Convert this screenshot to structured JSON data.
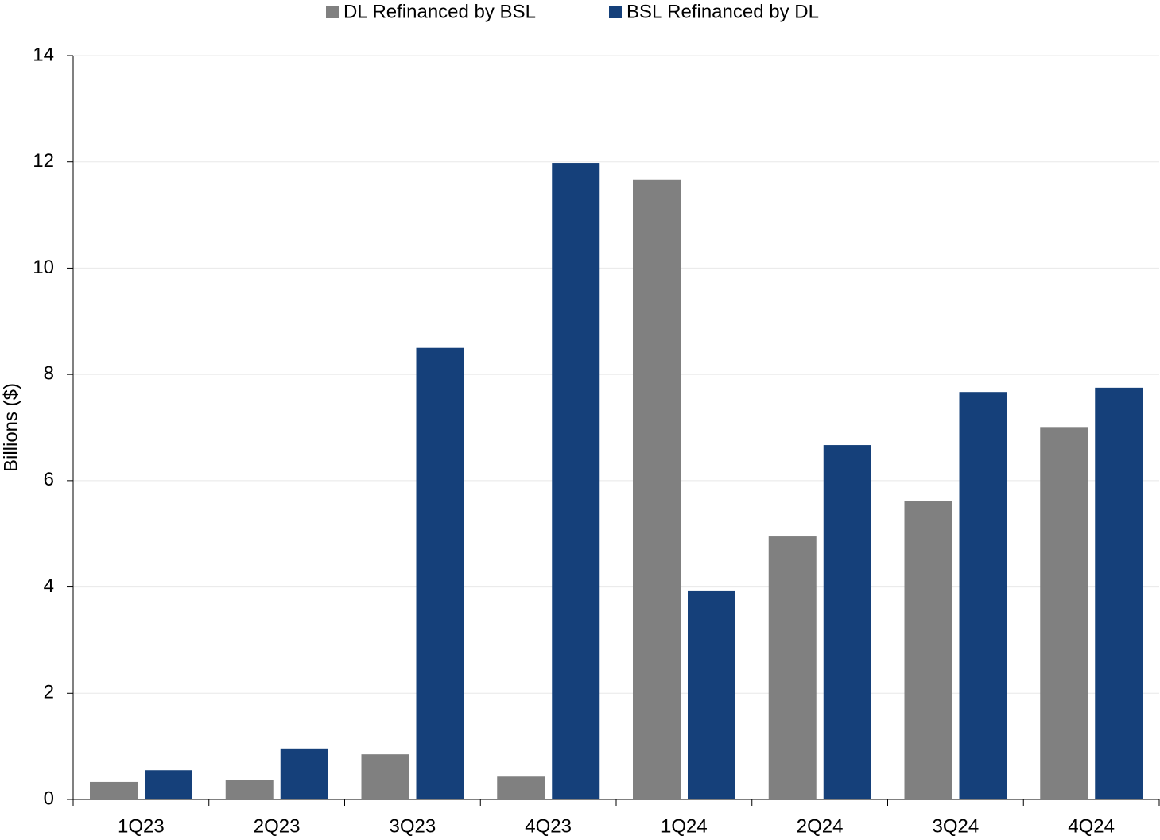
{
  "chart_data": {
    "type": "bar",
    "y_label": "Billions ($)",
    "categories": [
      "1Q23",
      "2Q23",
      "3Q23",
      "4Q23",
      "1Q24",
      "2Q24",
      "3Q24",
      "4Q24"
    ],
    "series": [
      {
        "name": "DL Refinanced by BSL",
        "color": "#808080",
        "values": [
          0.33,
          0.37,
          0.85,
          0.43,
          11.67,
          4.95,
          5.61,
          7.01
        ]
      },
      {
        "name": "BSL Refinanced by DL",
        "color": "#15407a",
        "values": [
          0.55,
          0.96,
          8.5,
          11.98,
          3.92,
          6.67,
          7.67,
          7.75
        ]
      }
    ],
    "ylim": [
      0,
      14
    ],
    "yticks": [
      0,
      2,
      4,
      6,
      8,
      10,
      12,
      14
    ],
    "grid": true,
    "legend": "top"
  }
}
